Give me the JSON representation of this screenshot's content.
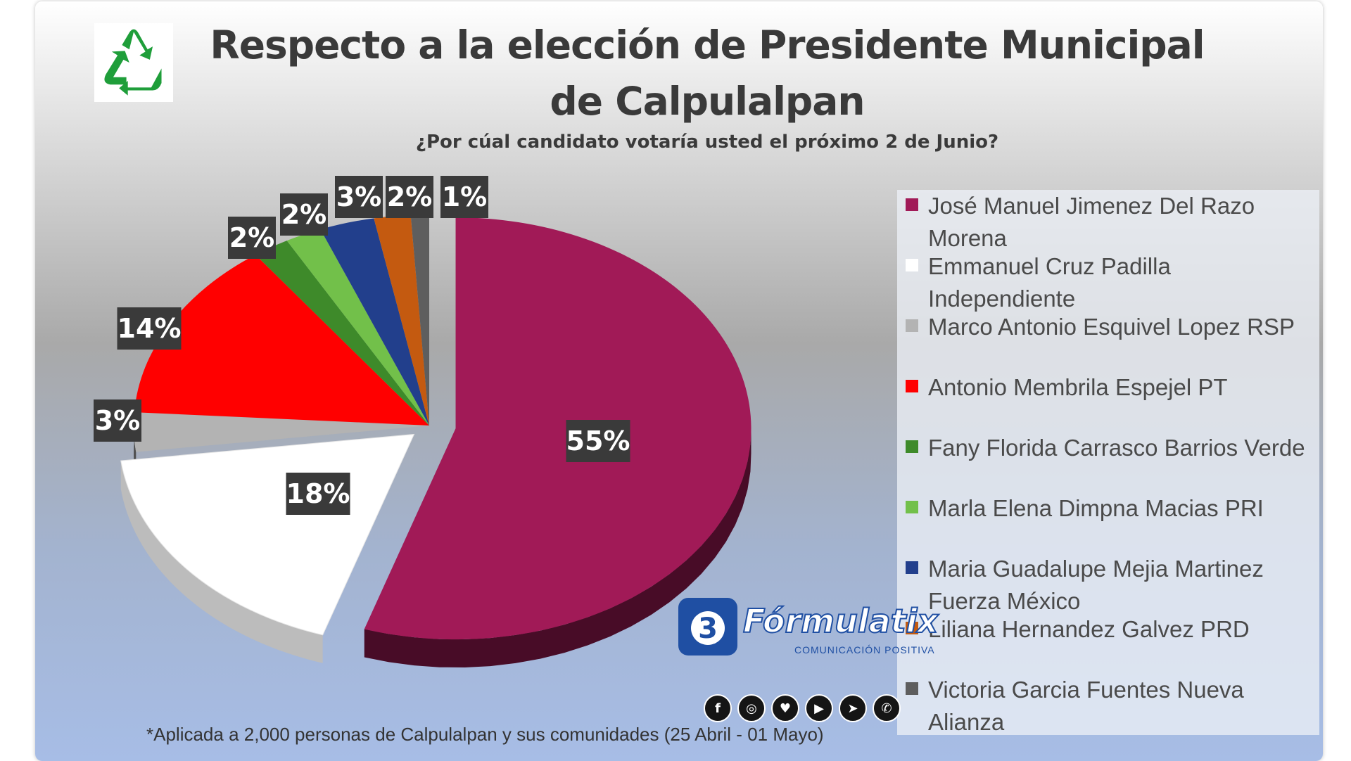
{
  "title": "Respecto a la elección de Presidente Municipal de Calpulalpan",
  "subtitle": "¿Por cúal candidato votaría usted el próximo 2 de Junio?",
  "footnote": "*Aplicada a 2,000 personas de Calpulalpan y sus comunidades (25 Abril - 01 Mayo)",
  "logo_icon": "recycle-icon",
  "brand": {
    "name": "Fórmulatix",
    "tagline": "COMUNICACIÓN POSITIVA"
  },
  "socials": [
    {
      "icon": "facebook-icon",
      "glyph": "f"
    },
    {
      "icon": "instagram-icon",
      "glyph": "◎"
    },
    {
      "icon": "twitter-icon",
      "glyph": "♥"
    },
    {
      "icon": "youtube-icon",
      "glyph": "▶"
    },
    {
      "icon": "telegram-icon",
      "glyph": "➤"
    },
    {
      "icon": "whatsapp-icon",
      "glyph": "✆"
    }
  ],
  "chart_data": {
    "type": "pie",
    "title": "Respecto a la elección de Presidente Municipal de Calpulalpan",
    "subtitle": "¿Por cúal candidato votaría usted el próximo 2 de Junio?",
    "legend_position": "right",
    "slices": [
      {
        "label": "José Manuel Jimenez Del Razo Morena",
        "value": 55,
        "display": "55%",
        "color": "#a11a57"
      },
      {
        "label": "Emmanuel Cruz Padilla Independiente",
        "value": 18,
        "display": "18%",
        "color": "#ffffff"
      },
      {
        "label": "Marco Antonio Esquivel Lopez RSP",
        "value": 3,
        "display": "3%",
        "color": "#b3b3b3"
      },
      {
        "label": "Antonio Membrila Espejel  PT",
        "value": 14,
        "display": "14%",
        "color": "#ff0000"
      },
      {
        "label": "Fany Florida Carrasco Barrios Verde",
        "value": 2,
        "display": "2%",
        "color": "#3e8a2a"
      },
      {
        "label": "Marla Elena Dimpna Macias  PRI",
        "value": 2,
        "display": "2%",
        "color": "#72c04a"
      },
      {
        "label": "Maria Guadalupe Mejia Martinez Fuerza México",
        "value": 3,
        "display": "3%",
        "color": "#223f8c"
      },
      {
        "label": "Liliana Hernandez Galvez  PRD",
        "value": 2,
        "display": "2%",
        "color": "#c45a10"
      },
      {
        "label": "Victoria Garcia Fuentes Nueva Alianza",
        "value": 1,
        "display": "1%",
        "color": "#5e5e5e"
      }
    ]
  }
}
